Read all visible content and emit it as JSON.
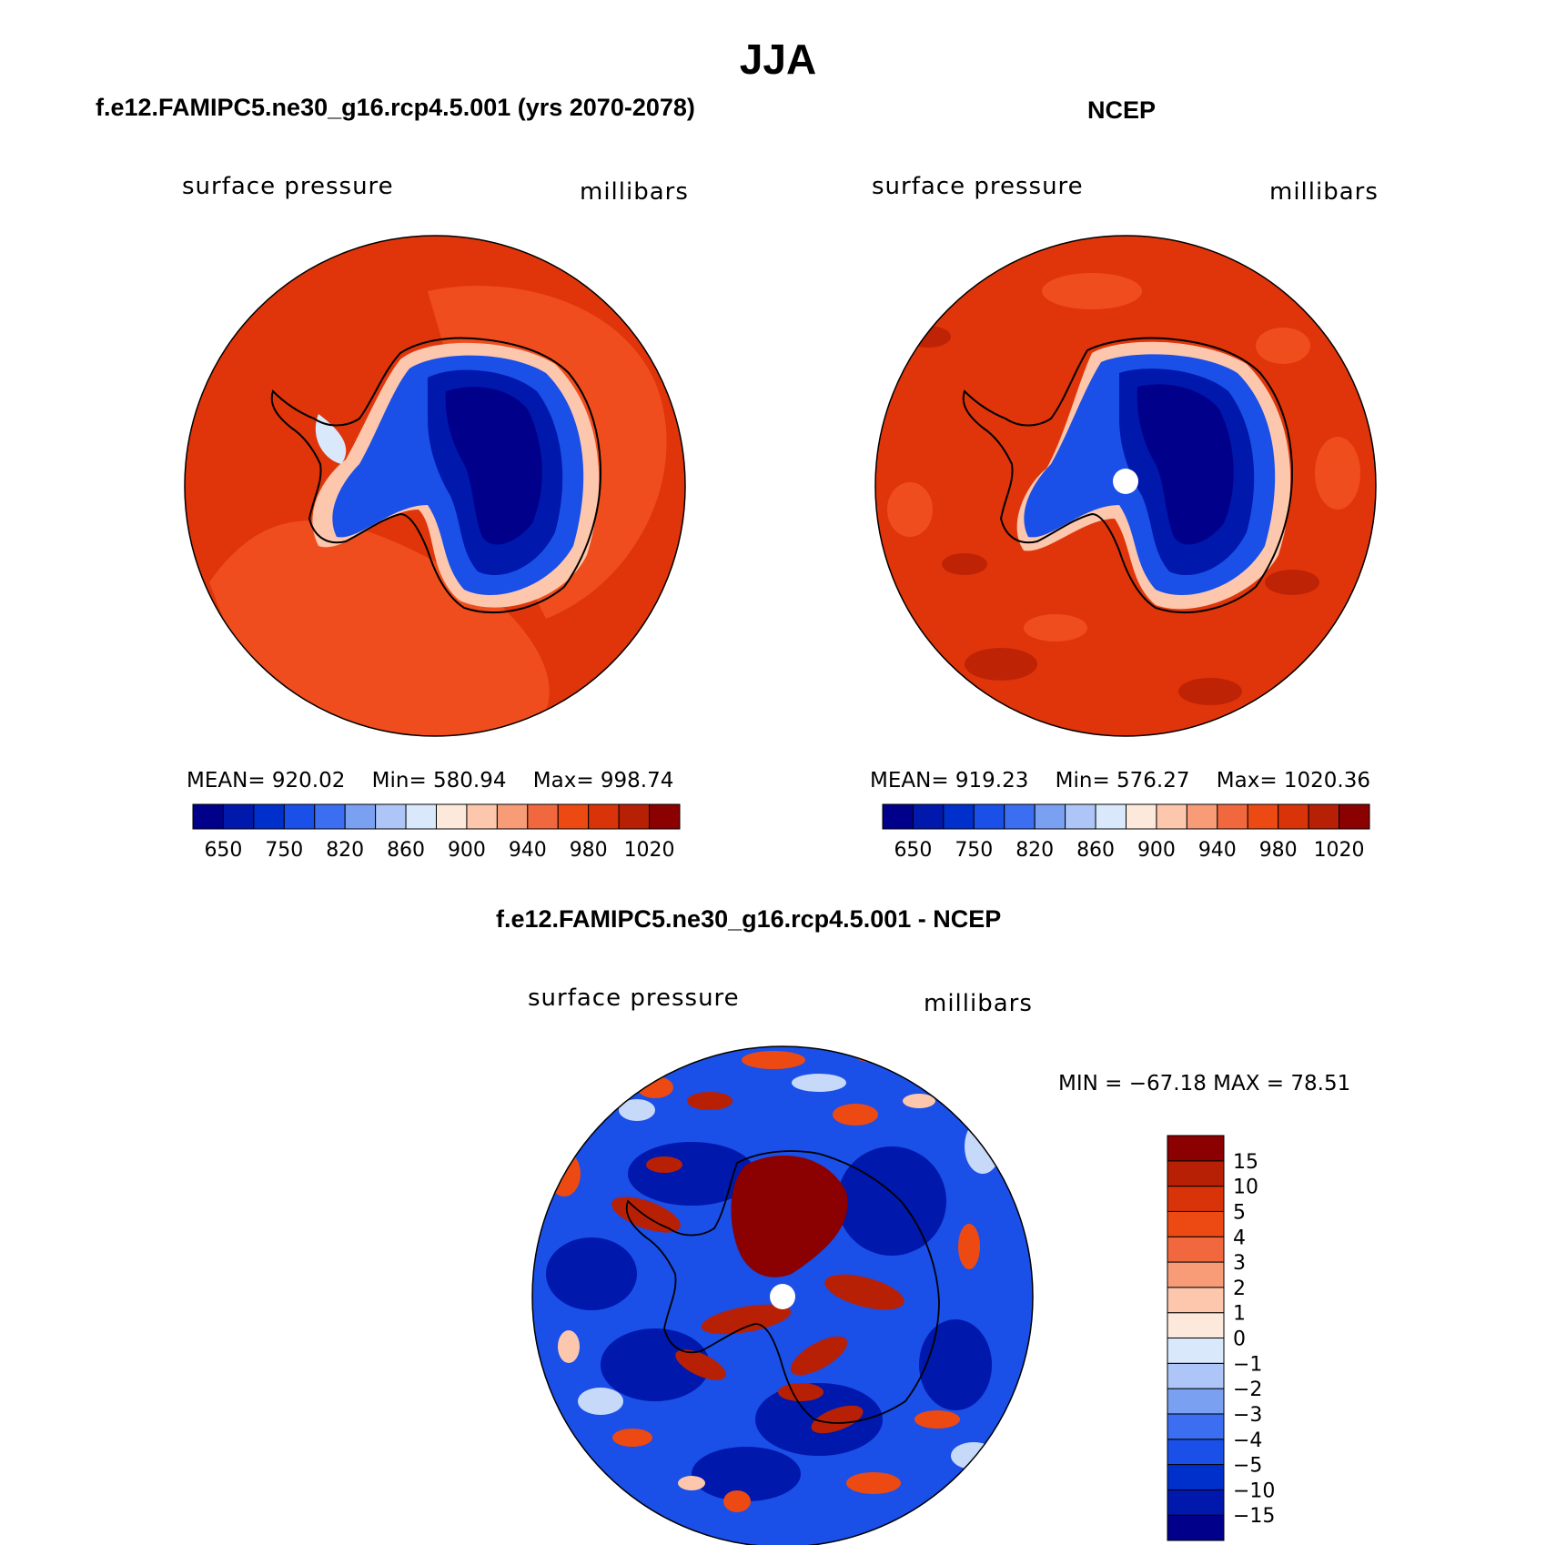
{
  "figure": {
    "season": "JJA",
    "panel_a": {
      "title": "f.e12.FAMIPC5.ne30_g16.rcp4.5.001 (yrs 2070-2078)",
      "left_label": "surface pressure",
      "right_label": "millibars",
      "stats": {
        "mean": "MEAN= 920.02",
        "min": "Min= 580.94",
        "max": "Max= 998.74"
      }
    },
    "panel_b": {
      "title": "NCEP",
      "left_label": "surface pressure",
      "right_label": "millibars",
      "stats": {
        "mean": "MEAN= 919.23",
        "min": "Min= 576.27",
        "max": "Max= 1020.36"
      }
    },
    "panel_c": {
      "title": "f.e12.FAMIPC5.ne30_g16.rcp4.5.001 - NCEP",
      "left_label": "surface pressure",
      "right_label": "millibars",
      "minmax": "MIN = −67.18 MAX =  78.51"
    },
    "colorbar_abs": {
      "colors": [
        "#00008b",
        "#0018ab",
        "#0030cc",
        "#1a4fe8",
        "#3b6ef0",
        "#7aa0f2",
        "#adc6f7",
        "#d9e8fb",
        "#fde9dc",
        "#fcc7ac",
        "#f89b77",
        "#f2683e",
        "#ec4a12",
        "#d9330a",
        "#b82005",
        "#8b0000"
      ],
      "labels": [
        "650",
        "750",
        "820",
        "860",
        "900",
        "940",
        "980",
        "1020"
      ]
    },
    "colorbar_diff": {
      "colors": [
        "#00008b",
        "#0018ab",
        "#0030cc",
        "#1a4fe8",
        "#3b6ef0",
        "#7aa0f2",
        "#adc6f7",
        "#d9e8fb",
        "#fde9dc",
        "#fcc7ac",
        "#f89b77",
        "#f2683e",
        "#ec4a12",
        "#d9330a",
        "#b82005",
        "#8b0000"
      ],
      "labels": [
        "15",
        "10",
        "5",
        "4",
        "3",
        "2",
        "1",
        "0",
        "−1",
        "−2",
        "−3",
        "−4",
        "−5",
        "−10",
        "−15"
      ]
    }
  }
}
